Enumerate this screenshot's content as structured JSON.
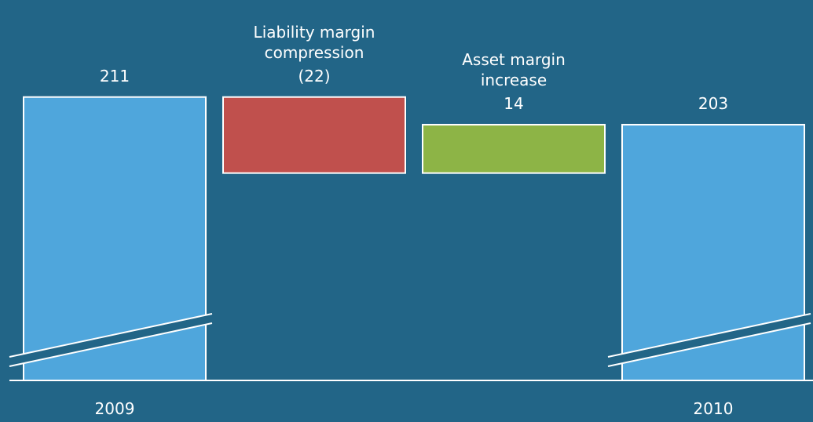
{
  "chart_data": {
    "type": "waterfall",
    "categories": [
      "2009",
      "Liability margin compression",
      "Asset margin increase",
      "2010"
    ],
    "values": [
      211,
      -22,
      14,
      203
    ],
    "value_labels": [
      "211",
      "(22)",
      "14",
      "203"
    ],
    "bar_types": [
      "total",
      "delta",
      "delta",
      "total"
    ],
    "colors": {
      "total": "#4fa6dc",
      "increase": "#8db446",
      "decrease": "#c0504d"
    },
    "axis_break": true,
    "ylim": [
      129,
      230
    ]
  }
}
